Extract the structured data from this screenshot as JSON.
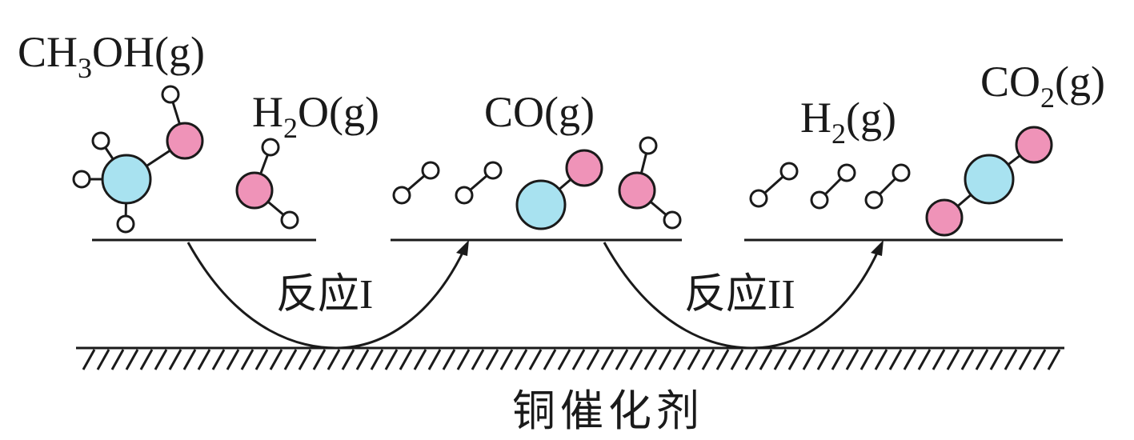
{
  "colors": {
    "carbon": "#a8e2f0",
    "oxygen": "#ef93b8",
    "hydrogen": "#ffffff",
    "line": "#1a1a1a"
  },
  "species": {
    "methanol": {
      "pre": "CH",
      "sub1": "3",
      "post": "OH(g)"
    },
    "water": {
      "pre": "H",
      "sub1": "2",
      "post": "O(g)"
    },
    "carbon_monoxide": {
      "pre": "CO(g)"
    },
    "hydrogen": {
      "pre": "H",
      "sub1": "2",
      "post": "(g)"
    },
    "carbon_dioxide": {
      "pre": "CO",
      "sub1": "2",
      "post": "(g)"
    }
  },
  "reactions": {
    "reaction_1": "反应I",
    "reaction_2": "反应II"
  },
  "catalyst": "铜催化剂",
  "atom_legend": {
    "carbon": "carbon-atom",
    "oxygen": "oxygen-atom",
    "hydrogen": "hydrogen-atom"
  }
}
